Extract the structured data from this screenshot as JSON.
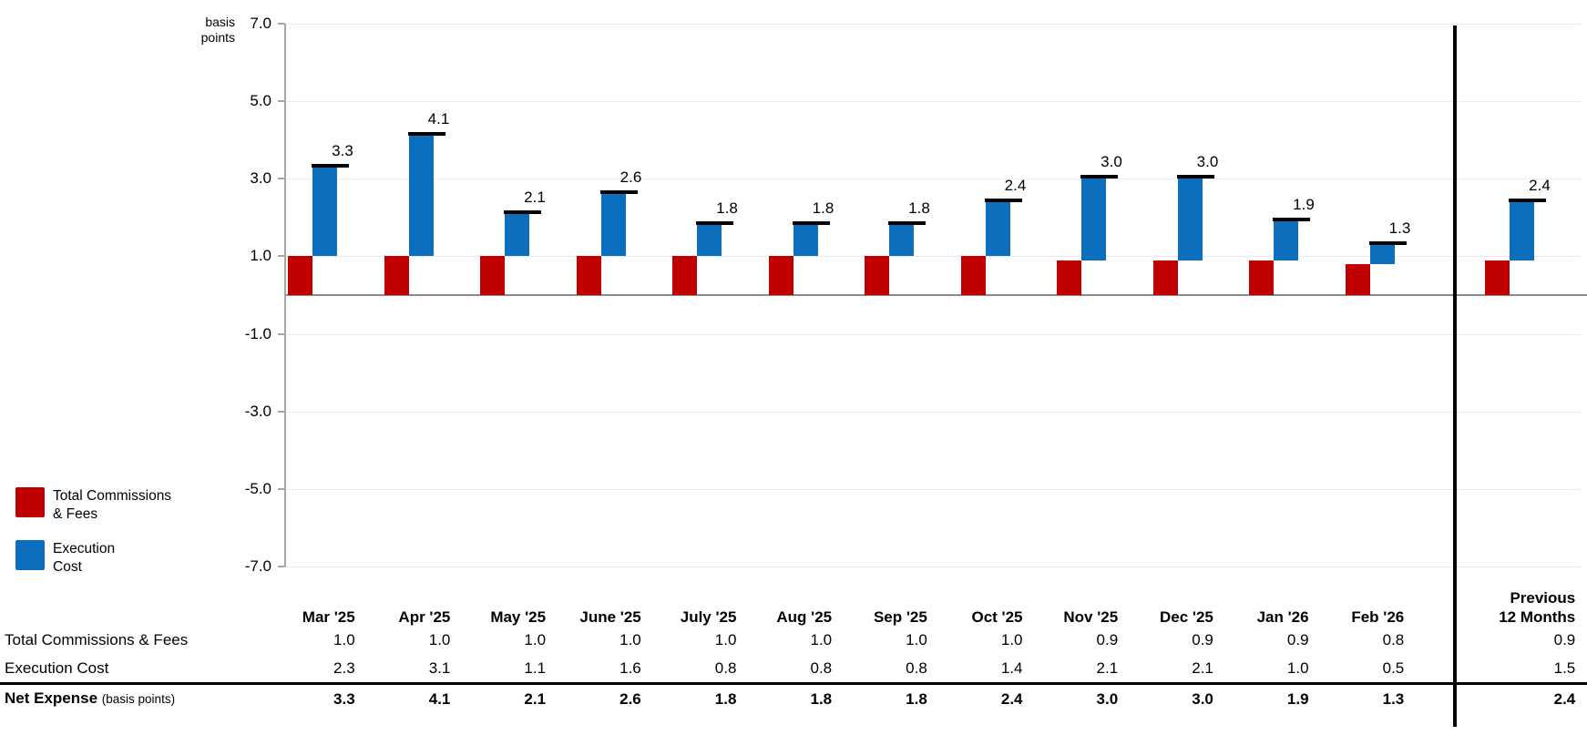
{
  "chart_data": {
    "type": "bar",
    "subtype": "stacked-waterfall-clusters",
    "title": "",
    "unit_label_lines": [
      "basis",
      "points"
    ],
    "y_axis": {
      "ticks": [
        7.0,
        5.0,
        3.0,
        1.0,
        -1.0,
        -3.0,
        -5.0,
        -7.0
      ],
      "ylim": [
        -7.0,
        7.0
      ],
      "grid": true
    },
    "categories": [
      "Mar '25",
      "Apr '25",
      "May '25",
      "June '25",
      "July '25",
      "Aug '25",
      "Sep '25",
      "Oct '25",
      "Nov '25",
      "Dec '25",
      "Jan '26",
      "Feb '26"
    ],
    "summary_category_lines": [
      "Previous",
      "12 Months"
    ],
    "series": [
      {
        "name": "Total Commissions & Fees",
        "color": "#c00000",
        "values": [
          1.0,
          1.0,
          1.0,
          1.0,
          1.0,
          1.0,
          1.0,
          1.0,
          0.9,
          0.9,
          0.9,
          0.8
        ],
        "summary": 0.9
      },
      {
        "name": "Execution Cost",
        "color": "#0b6fbd",
        "values": [
          2.3,
          3.1,
          1.1,
          1.6,
          0.8,
          0.8,
          0.8,
          1.4,
          2.1,
          2.1,
          1.0,
          0.5
        ],
        "summary": 1.5
      }
    ],
    "totals": {
      "name": "Net Expense",
      "values": [
        3.3,
        4.1,
        2.1,
        2.6,
        1.8,
        1.8,
        1.8,
        2.4,
        3.0,
        3.0,
        1.9,
        1.3
      ],
      "summary": 2.4,
      "marker_color": "#000000"
    },
    "colors": {
      "commissions": "#c00000",
      "execution": "#0b6fbd",
      "net_marker": "#000000",
      "gridline": "#e6edf4",
      "zero_line": "#8a8a8a",
      "axis_line": "#a6a6a6",
      "divider": "#000000"
    },
    "legend_position": "left-bottom"
  },
  "legend": {
    "items": [
      {
        "name": "total-commissions-fees",
        "color": "#c00000",
        "lines": [
          "Total Commissions",
          "& Fees"
        ]
      },
      {
        "name": "execution-cost",
        "color": "#0b6fbd",
        "lines": [
          "Execution",
          "Cost"
        ]
      }
    ]
  },
  "table": {
    "header": {
      "months": [
        "Mar '25",
        "Apr '25",
        "May '25",
        "June '25",
        "July '25",
        "Aug '25",
        "Sep '25",
        "Oct '25",
        "Nov '25",
        "Dec '25",
        "Jan '26",
        "Feb '26"
      ],
      "summary_lines": [
        "Previous",
        "12 Months"
      ]
    },
    "rows": [
      {
        "label": "Total Commissions & Fees",
        "values": [
          1.0,
          1.0,
          1.0,
          1.0,
          1.0,
          1.0,
          1.0,
          1.0,
          0.9,
          0.9,
          0.9,
          0.8
        ],
        "summary": 0.9,
        "bold": false
      },
      {
        "label": "Execution Cost",
        "values": [
          2.3,
          3.1,
          1.1,
          1.6,
          0.8,
          0.8,
          0.8,
          1.4,
          2.1,
          2.1,
          1.0,
          0.5
        ],
        "summary": 1.5,
        "bold": false
      },
      {
        "label": "Net Expense",
        "label_note": "(basis points)",
        "values": [
          3.3,
          4.1,
          2.1,
          2.6,
          1.8,
          1.8,
          1.8,
          2.4,
          3.0,
          3.0,
          1.9,
          1.3
        ],
        "summary": 2.4,
        "bold": true
      }
    ]
  }
}
